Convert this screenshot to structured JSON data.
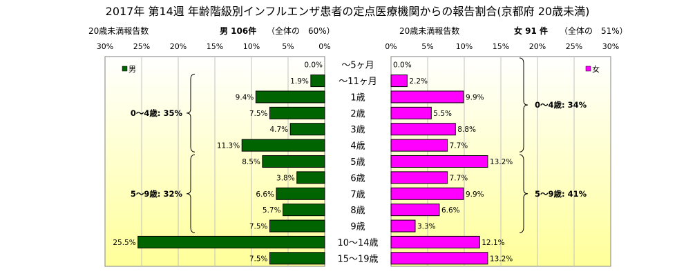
{
  "title": "2017年 第14週 年齢階級別インフルエンザ患者の定点医療機関からの報告割合(京都府 20歳未満)",
  "left_header": {
    "caption": "20歳未満報告数",
    "count": "男 106件",
    "total": "（全体の　60%）"
  },
  "right_header": {
    "caption": "20歳未満報告数",
    "count": "女 91 件",
    "total": "（全体の　51%）"
  },
  "colors": {
    "male": "#006400",
    "female": "#ff00ff",
    "panel_top": "#ffffff",
    "panel_bottom": "#ffff99"
  },
  "chart_data": {
    "type": "bar",
    "categories": [
      "〜5ヶ月",
      "〜11ヶ月",
      "1歳",
      "2歳",
      "3歳",
      "4歳",
      "5歳",
      "6歳",
      "7歳",
      "8歳",
      "9歳",
      "10〜14歳",
      "15〜19歳"
    ],
    "series": [
      {
        "name": "男",
        "values": [
          0.0,
          1.9,
          9.4,
          7.5,
          4.7,
          11.3,
          8.5,
          3.8,
          6.6,
          5.7,
          7.5,
          25.5,
          7.5
        ],
        "labels": [
          "0.0%",
          "1.9%",
          "9.4%",
          "7.5%",
          "4.7%",
          "11.3%",
          "8.5%",
          "3.8%",
          "6.6%",
          "5.7%",
          "7.5%",
          "25.5%",
          "7.5%"
        ]
      },
      {
        "name": "女",
        "values": [
          0.0,
          2.2,
          9.9,
          5.5,
          8.8,
          7.7,
          13.2,
          7.7,
          9.9,
          6.6,
          3.3,
          12.1,
          13.2
        ],
        "labels": [
          "0.0%",
          "2.2%",
          "9.9%",
          "5.5%",
          "8.8%",
          "7.7%",
          "13.2%",
          "7.7%",
          "9.9%",
          "6.6%",
          "3.3%",
          "12.1%",
          "13.2%"
        ]
      }
    ],
    "xlim": [
      0,
      30
    ],
    "ticks_left": [
      "30%",
      "25%",
      "20%",
      "15%",
      "10%",
      "5%",
      "0%"
    ],
    "ticks_right": [
      "0%",
      "5%",
      "10%",
      "15%",
      "20%",
      "25%",
      "30%"
    ],
    "grid": true,
    "legend": "top-inside",
    "group_annotations": {
      "male": [
        {
          "text": "0〜4歳: 35%",
          "from": 1,
          "to": 5
        },
        {
          "text": "5〜9歳: 32%",
          "from": 6,
          "to": 10
        }
      ],
      "female": [
        {
          "text": "0〜4歳: 34%",
          "from": 0,
          "to": 5
        },
        {
          "text": "5〜9歳: 41%",
          "from": 6,
          "to": 10
        }
      ]
    }
  }
}
